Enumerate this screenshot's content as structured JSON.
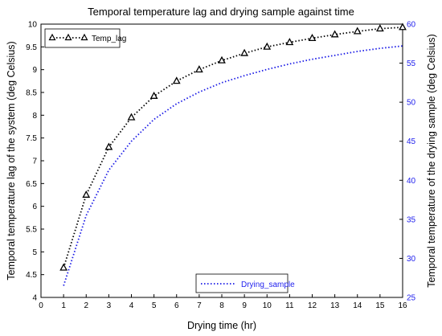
{
  "chart_data": {
    "type": "line",
    "title": "Temporal temperature lag and drying sample against time",
    "xlabel": "Drying time (hr)",
    "ylabel": "Temporal temperature lag of the system (deg Celsius)",
    "y2label": "Temporal temperature of the drying sample (deg Celsius)",
    "x": [
      1,
      2,
      3,
      4,
      5,
      6,
      7,
      8,
      9,
      10,
      11,
      12,
      13,
      14,
      15,
      16
    ],
    "xlim": [
      0,
      16
    ],
    "ylim": [
      4,
      10
    ],
    "y2lim": [
      25,
      60
    ],
    "xticks": [
      "0",
      "1",
      "2",
      "3",
      "4",
      "5",
      "6",
      "7",
      "8",
      "9",
      "10",
      "11",
      "12",
      "13",
      "14",
      "15",
      "16"
    ],
    "yticks": [
      "4",
      "4.5",
      "5",
      "5.5",
      "6",
      "6.5",
      "7",
      "7.5",
      "8",
      "8.5",
      "9",
      "9.5",
      "10"
    ],
    "y2ticks": [
      "25",
      "30",
      "35",
      "40",
      "45",
      "50",
      "55",
      "60"
    ],
    "grid": false,
    "series": [
      {
        "name": "Temp_lag",
        "axis": "left",
        "color": "#000000",
        "style": "dotted",
        "marker": "open-triangle",
        "values": [
          4.65,
          6.25,
          7.3,
          7.95,
          8.42,
          8.75,
          9.0,
          9.2,
          9.36,
          9.5,
          9.6,
          9.69,
          9.77,
          9.84,
          9.9,
          9.93
        ]
      },
      {
        "name": "Drying_sample",
        "axis": "right",
        "color": "#1a1ae6",
        "style": "dotted",
        "marker": "none",
        "values": [
          26.5,
          35.5,
          41.3,
          45.0,
          47.8,
          49.8,
          51.3,
          52.5,
          53.4,
          54.2,
          54.9,
          55.5,
          56.0,
          56.5,
          56.9,
          57.2
        ]
      }
    ],
    "legends": [
      {
        "series": "Temp_lag",
        "placement": "top-left"
      },
      {
        "series": "Drying_sample",
        "placement": "bottom-center"
      }
    ]
  }
}
